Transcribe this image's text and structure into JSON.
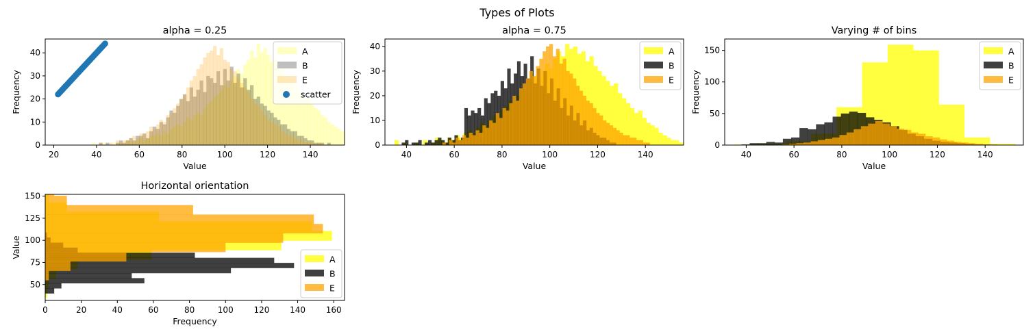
{
  "figure": {
    "suptitle": "Types of Plots"
  },
  "colors": {
    "A": "#ffff00",
    "B": "#000000",
    "E": "#ffa500",
    "scatter": "#1f77b4"
  },
  "chart_data": [
    {
      "type": "histogram",
      "title": "alpha = 0.25",
      "xlabel": "Value",
      "ylabel": "Frequency",
      "alpha": 0.25,
      "xlim": [
        16,
        156
      ],
      "ylim": [
        0,
        46
      ],
      "xticks": [
        20,
        40,
        60,
        80,
        100,
        120,
        140
      ],
      "yticks": [
        0,
        10,
        20,
        30,
        40
      ],
      "legend": {
        "position": "top-right",
        "entries": [
          "A",
          "B",
          "E",
          "scatter"
        ]
      },
      "bins": {
        "start": 38,
        "width": 1.57
      },
      "series": [
        {
          "name": "A",
          "values": [
            1,
            0,
            0,
            1,
            0,
            0,
            1,
            0,
            1,
            0,
            2,
            1,
            1,
            2,
            3,
            2,
            3,
            4,
            4,
            5,
            4,
            6,
            5,
            7,
            8,
            9,
            8,
            10,
            12,
            11,
            13,
            14,
            13,
            16,
            18,
            19,
            21,
            22,
            24,
            26,
            25,
            28,
            30,
            33,
            31,
            35,
            37,
            41,
            38,
            44,
            40,
            42,
            39,
            36,
            38,
            33,
            34,
            30,
            28,
            29,
            26,
            24,
            22,
            20,
            21,
            18,
            16,
            15,
            13,
            12,
            10,
            9,
            8,
            7,
            6,
            4,
            5,
            3,
            3,
            2,
            2,
            1,
            1,
            0,
            1
          ]
        },
        {
          "name": "B",
          "values": [
            0,
            0,
            1,
            0,
            1,
            0,
            0,
            1,
            2,
            1,
            2,
            3,
            2,
            4,
            4,
            5,
            3,
            6,
            8,
            7,
            10,
            9,
            12,
            15,
            14,
            17,
            20,
            22,
            19,
            25,
            21,
            24,
            28,
            23,
            30,
            29,
            27,
            32,
            26,
            33,
            28,
            34,
            27,
            31,
            25,
            29,
            24,
            26,
            20,
            21,
            18,
            17,
            15,
            14,
            12,
            11,
            9,
            9,
            7,
            6,
            6,
            4,
            4,
            3,
            2,
            2,
            1,
            1,
            1,
            0,
            1
          ]
        },
        {
          "name": "E",
          "values": [
            0,
            0,
            1,
            0,
            0,
            1,
            0,
            2,
            1,
            2,
            2,
            3,
            4,
            3,
            5,
            5,
            6,
            8,
            7,
            9,
            11,
            10,
            13,
            14,
            16,
            18,
            20,
            22,
            25,
            28,
            30,
            33,
            35,
            38,
            40,
            41,
            43,
            39,
            42,
            37,
            36,
            33,
            32,
            29,
            27,
            25,
            23,
            20,
            18,
            17,
            15,
            13,
            11,
            10,
            9,
            8,
            6,
            5,
            4,
            4,
            3,
            2,
            2,
            1,
            1,
            1,
            0,
            1
          ]
        }
      ],
      "scatter": {
        "name": "scatter",
        "x_range": [
          22,
          44
        ],
        "y_range": [
          22,
          44
        ],
        "count": 40
      }
    },
    {
      "type": "histogram",
      "title": "alpha = 0.75",
      "xlabel": "Value",
      "ylabel": "Frequency",
      "alpha": 0.75,
      "xlim": [
        31,
        156
      ],
      "ylim": [
        0,
        43
      ],
      "xticks": [
        40,
        60,
        80,
        100,
        120,
        140
      ],
      "yticks": [
        0,
        10,
        20,
        30,
        40
      ],
      "legend": {
        "position": "top-right",
        "entries": [
          "A",
          "B",
          "E"
        ]
      },
      "series": [
        {
          "name": "A",
          "start": 35,
          "width": 1.7,
          "values": [
            2,
            0,
            1,
            0,
            0,
            1,
            0,
            2,
            0,
            1,
            3,
            2,
            1,
            3,
            2,
            4,
            3,
            5,
            6,
            5,
            7,
            9,
            8,
            10,
            12,
            11,
            14,
            16,
            18,
            17,
            20,
            23,
            22,
            26,
            28,
            27,
            30,
            33,
            31,
            35,
            38,
            36,
            41,
            39,
            40,
            37,
            38,
            34,
            36,
            32,
            30,
            28,
            26,
            24,
            25,
            21,
            19,
            17,
            15,
            13,
            14,
            11,
            9,
            8,
            7,
            5,
            4,
            3,
            2,
            2,
            1,
            1
          ]
        },
        {
          "name": "B",
          "start": 38,
          "width": 1.38,
          "values": [
            1,
            2,
            0,
            1,
            1,
            2,
            0,
            1,
            2,
            1,
            2,
            3,
            2,
            1,
            3,
            2,
            4,
            2,
            3,
            15,
            12,
            14,
            13,
            15,
            12,
            19,
            17,
            21,
            22,
            20,
            26,
            23,
            31,
            25,
            29,
            34,
            28,
            33,
            27,
            36,
            25,
            31,
            24,
            30,
            21,
            27,
            18,
            23,
            15,
            19,
            12,
            16,
            10,
            13,
            8,
            10,
            6,
            7,
            5,
            4,
            3,
            3,
            2,
            1,
            1
          ]
        },
        {
          "name": "E",
          "start": 55,
          "width": 1.4,
          "values": [
            1,
            0,
            2,
            1,
            3,
            2,
            4,
            3,
            5,
            4,
            6,
            5,
            8,
            7,
            10,
            9,
            13,
            11,
            15,
            14,
            17,
            20,
            18,
            23,
            25,
            27,
            30,
            28,
            32,
            35,
            38,
            40,
            41,
            36,
            39,
            33,
            35,
            30,
            29,
            27,
            24,
            22,
            20,
            18,
            17,
            15,
            13,
            12,
            10,
            9,
            8,
            7,
            6,
            5,
            4,
            4,
            3,
            3,
            2,
            2,
            1,
            1
          ]
        }
      ]
    },
    {
      "type": "histogram",
      "title": "Varying # of bins",
      "xlabel": "Value",
      "ylabel": "Frequency",
      "alpha": 0.75,
      "xlim": [
        31,
        156
      ],
      "ylim": [
        0,
        168
      ],
      "xticks": [
        40,
        60,
        80,
        100,
        120,
        140
      ],
      "yticks": [
        0,
        50,
        100,
        150
      ],
      "legend": {
        "position": "top-right",
        "entries": [
          "A",
          "B",
          "E"
        ]
      },
      "series": [
        {
          "name": "A",
          "start": 35,
          "width": 10.7,
          "values": [
            1,
            2,
            6,
            18,
            60,
            131,
            159,
            150,
            64,
            12,
            2
          ]
        },
        {
          "name": "B",
          "start": 38,
          "width": 3.47,
          "values": [
            1,
            3,
            3,
            5,
            4,
            10,
            12,
            27,
            25,
            33,
            36,
            45,
            50,
            53,
            51,
            44,
            40,
            36,
            30,
            24,
            18,
            14,
            10,
            7,
            5,
            4,
            3,
            2,
            1,
            1
          ]
        },
        {
          "name": "E",
          "start": 55,
          "width": 3.0,
          "values": [
            1,
            2,
            3,
            4,
            6,
            8,
            10,
            12,
            16,
            20,
            25,
            30,
            34,
            38,
            34,
            30,
            26,
            24,
            20,
            18,
            14,
            12,
            9,
            7,
            5,
            4,
            3,
            2,
            1,
            1
          ]
        }
      ]
    },
    {
      "type": "histogram",
      "orientation": "horizontal",
      "title": "Horizontal orientation",
      "xlabel": "Frequency",
      "ylabel": "Value",
      "alpha": 0.75,
      "xlim": [
        0,
        166
      ],
      "ylim": [
        32,
        152
      ],
      "xticks": [
        0,
        20,
        40,
        60,
        80,
        100,
        120,
        140,
        160
      ],
      "yticks": [
        50,
        75,
        100,
        125,
        150
      ],
      "legend": {
        "position": "lower-right",
        "entries": [
          "A",
          "B",
          "E"
        ]
      },
      "series": [
        {
          "name": "A",
          "start": 35,
          "width": 10.8,
          "values": [
            1,
            2,
            6,
            18,
            59,
            131,
            159,
            148,
            63,
            12,
            2
          ]
        },
        {
          "name": "B",
          "start": 40,
          "width": 5.75,
          "values": [
            5,
            9,
            55,
            48,
            103,
            138,
            127,
            83,
            18,
            10,
            3,
            1
          ]
        },
        {
          "name": "E",
          "start": 55,
          "width": 10.6,
          "values": [
            2,
            14,
            45,
            100,
            132,
            154,
            149,
            82,
            12,
            5
          ]
        }
      ]
    }
  ]
}
